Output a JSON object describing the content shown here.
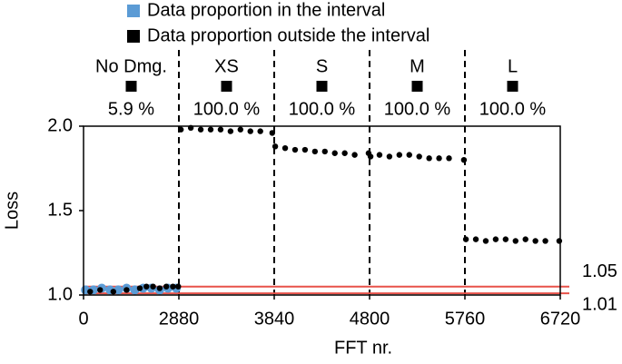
{
  "chart_data": {
    "type": "scatter",
    "xlabel": "FFT nr.",
    "ylabel": "Loss",
    "xlim": [
      0,
      6720
    ],
    "xticks": [
      0,
      2880,
      3840,
      4800,
      5760,
      6720
    ],
    "ylim": [
      1,
      2
    ],
    "yticks": [
      {
        "value": 1,
        "label": "1.0"
      },
      1.5,
      {
        "value": 2,
        "label": "2.0"
      }
    ],
    "thresholds": [
      1.05,
      1.01
    ],
    "threshold_color": "#e8524a",
    "segments": {
      "names": [
        "No Dmg.",
        "XS",
        "S",
        "M",
        "L"
      ],
      "values": [
        5.9,
        100,
        100,
        100,
        100
      ],
      "value_labels": [
        "5.9 %",
        "100.0 %",
        "100.0 %",
        "100.0 %",
        "100.0 %"
      ]
    },
    "series": [
      {
        "name": "Data proportion in the interval",
        "color": "#5b9bd5",
        "x": [
          60,
          300,
          550,
          800,
          1050,
          1300,
          1550,
          1800,
          2050,
          2300,
          2550,
          2800
        ],
        "y": [
          1.03,
          1.03,
          1.04,
          1.03,
          1.03,
          1.04,
          1.03,
          1.04,
          1.04,
          1.03,
          1.04,
          1.04
        ]
      },
      {
        "name": "Data proportion outside the interval",
        "color": "#000000",
        "x": [
          200,
          500,
          900,
          1300,
          1700,
          1900,
          2100,
          2300,
          2500,
          2700,
          2860,
          2900,
          3000,
          3100,
          3200,
          3300,
          3400,
          3500,
          3600,
          3700,
          3820,
          3850,
          3950,
          4050,
          4150,
          4250,
          4350,
          4450,
          4550,
          4650,
          4790,
          4810,
          4900,
          5000,
          5100,
          5200,
          5300,
          5400,
          5500,
          5600,
          5750,
          5770,
          5870,
          5970,
          6070,
          6170,
          6270,
          6370,
          6470,
          6570,
          6710
        ],
        "y": [
          1.02,
          1.03,
          1.02,
          1.03,
          1.04,
          1.05,
          1.05,
          1.04,
          1.05,
          1.05,
          1.05,
          1.98,
          1.99,
          1.98,
          1.98,
          1.98,
          1.97,
          1.98,
          1.97,
          1.97,
          1.96,
          1.88,
          1.87,
          1.86,
          1.86,
          1.85,
          1.85,
          1.84,
          1.84,
          1.83,
          1.84,
          1.82,
          1.83,
          1.82,
          1.83,
          1.83,
          1.82,
          1.81,
          1.81,
          1.81,
          1.8,
          1.33,
          1.33,
          1.32,
          1.33,
          1.33,
          1.32,
          1.33,
          1.32,
          1.32,
          1.32
        ]
      }
    ]
  }
}
